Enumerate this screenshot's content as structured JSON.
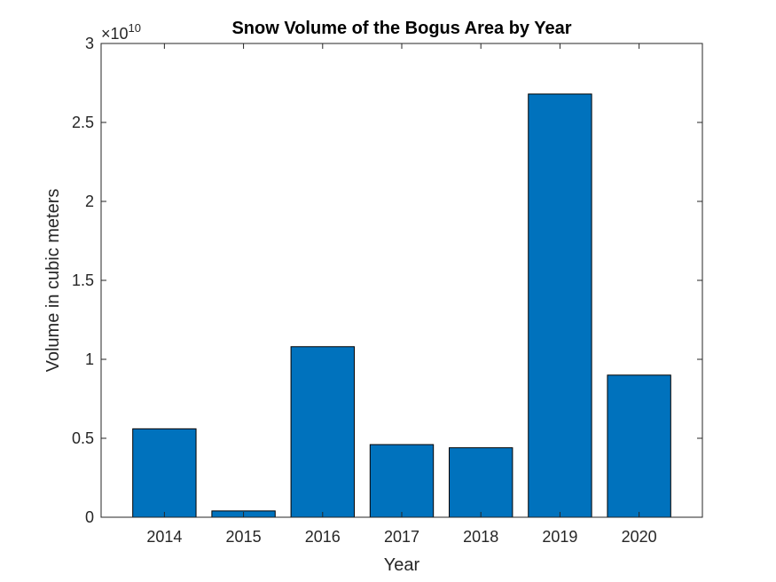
{
  "chart_data": {
    "type": "bar",
    "title": "Snow Volume of the Bogus Area by Year",
    "xlabel": "Year",
    "ylabel": "Volume in cubic meters",
    "categories": [
      "2014",
      "2015",
      "2016",
      "2017",
      "2018",
      "2019",
      "2020"
    ],
    "values": [
      5600000000.0,
      400000000.0,
      10800000000.0,
      4600000000.0,
      4400000000.0,
      26800000000.0,
      9000000000.0
    ],
    "ylim": [
      0,
      30000000000.0
    ],
    "yticks": [
      0,
      5000000000.0,
      10000000000.0,
      15000000000.0,
      20000000000.0,
      25000000000.0,
      30000000000.0
    ],
    "ytick_labels": [
      "0",
      "0.5",
      "1",
      "1.5",
      "2",
      "2.5",
      "3"
    ],
    "y_exponent_label": "×10",
    "y_exponent_power": "10",
    "grid": false,
    "bar_color": "#0072BD",
    "axis_color": "#262626"
  }
}
